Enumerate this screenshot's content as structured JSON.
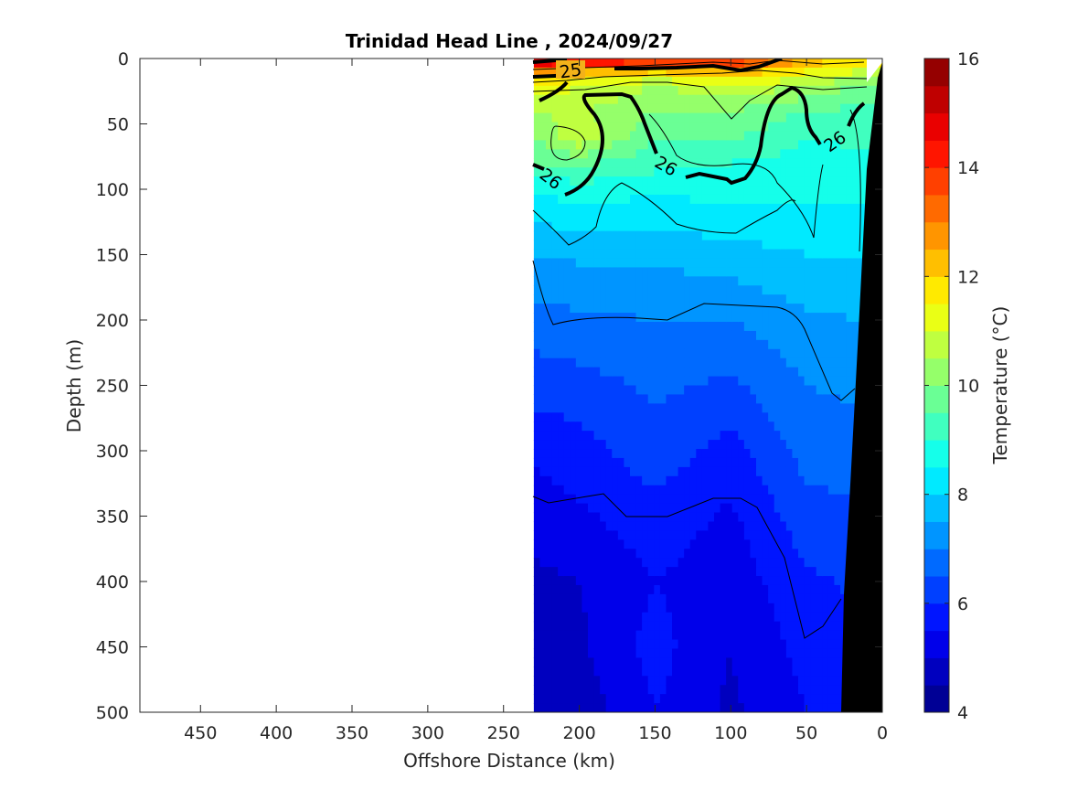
{
  "chart_data": {
    "type": "heatmap",
    "title": "Trinidad Head Line , 2024/09/27",
    "xlabel": "Offshore Distance (km)",
    "ylabel": "Depth (m)",
    "xlim": [
      490,
      0
    ],
    "ylim": [
      0,
      500
    ],
    "x_reversed": true,
    "y_reversed": true,
    "x_ticks": [
      450,
      400,
      350,
      300,
      250,
      200,
      150,
      100,
      50,
      0
    ],
    "y_ticks": [
      0,
      50,
      100,
      150,
      200,
      250,
      300,
      350,
      400,
      450,
      500
    ],
    "data_extent_km": [
      230,
      0
    ],
    "colorbar": {
      "label": "Temperature (°C)",
      "range": [
        4,
        16
      ],
      "ticks": [
        4,
        6,
        8,
        10,
        12,
        14,
        16
      ],
      "levels": 24,
      "colormap": "jet"
    },
    "bands_description": "temperature (°C) by depth at selected stations",
    "stations_km": [
      230,
      200,
      150,
      100,
      50,
      15
    ],
    "temperature_profiles": {
      "depths_m": [
        0,
        10,
        20,
        40,
        60,
        80,
        100,
        150,
        200,
        250,
        300,
        350,
        400,
        450,
        500
      ],
      "stations": [
        {
          "x": 230,
          "values": [
            15.5,
            13.0,
            11.5,
            10.5,
            10.0,
            9.5,
            8.5,
            7.5,
            6.8,
            6.2,
            5.6,
            5.2,
            4.9,
            4.7,
            4.6
          ]
        },
        {
          "x": 200,
          "values": [
            15.2,
            12.5,
            11.0,
            10.6,
            10.9,
            9.6,
            8.8,
            7.6,
            6.9,
            6.3,
            5.8,
            5.4,
            5.0,
            4.9,
            4.7
          ]
        },
        {
          "x": 150,
          "values": [
            14.8,
            12.0,
            10.5,
            10.0,
            9.5,
            9.2,
            8.6,
            7.6,
            7.0,
            6.6,
            6.3,
            5.8,
            5.5,
            5.7,
            5.5
          ]
        },
        {
          "x": 100,
          "values": [
            14.5,
            12.5,
            11.0,
            10.0,
            9.6,
            9.0,
            8.7,
            7.8,
            7.0,
            6.4,
            5.8,
            5.4,
            5.2,
            5.0,
            4.9
          ]
        },
        {
          "x": 50,
          "values": [
            12.5,
            11.5,
            10.5,
            9.5,
            9.0,
            8.8,
            8.6,
            8.0,
            7.4,
            7.0,
            6.7,
            6.3,
            5.9,
            5.7,
            5.5
          ]
        },
        {
          "x": 15,
          "values": [
            12.0,
            11.0,
            10.0,
            9.4,
            9.1,
            8.9,
            8.7,
            8.0,
            7.5,
            7.1,
            6.8,
            6.4,
            6.1,
            5.9,
            5.8
          ]
        }
      ]
    },
    "density_contours": {
      "labeled": [
        {
          "value": 25,
          "label": "25",
          "bold": true
        },
        {
          "value": 26,
          "label": "26",
          "bold": true
        }
      ],
      "contour_labels": [
        "25",
        "26",
        "26",
        "26",
        "26"
      ]
    },
    "bathymetry_fill": "#000000",
    "grid": false,
    "legend": "none (colorbar on right)"
  }
}
